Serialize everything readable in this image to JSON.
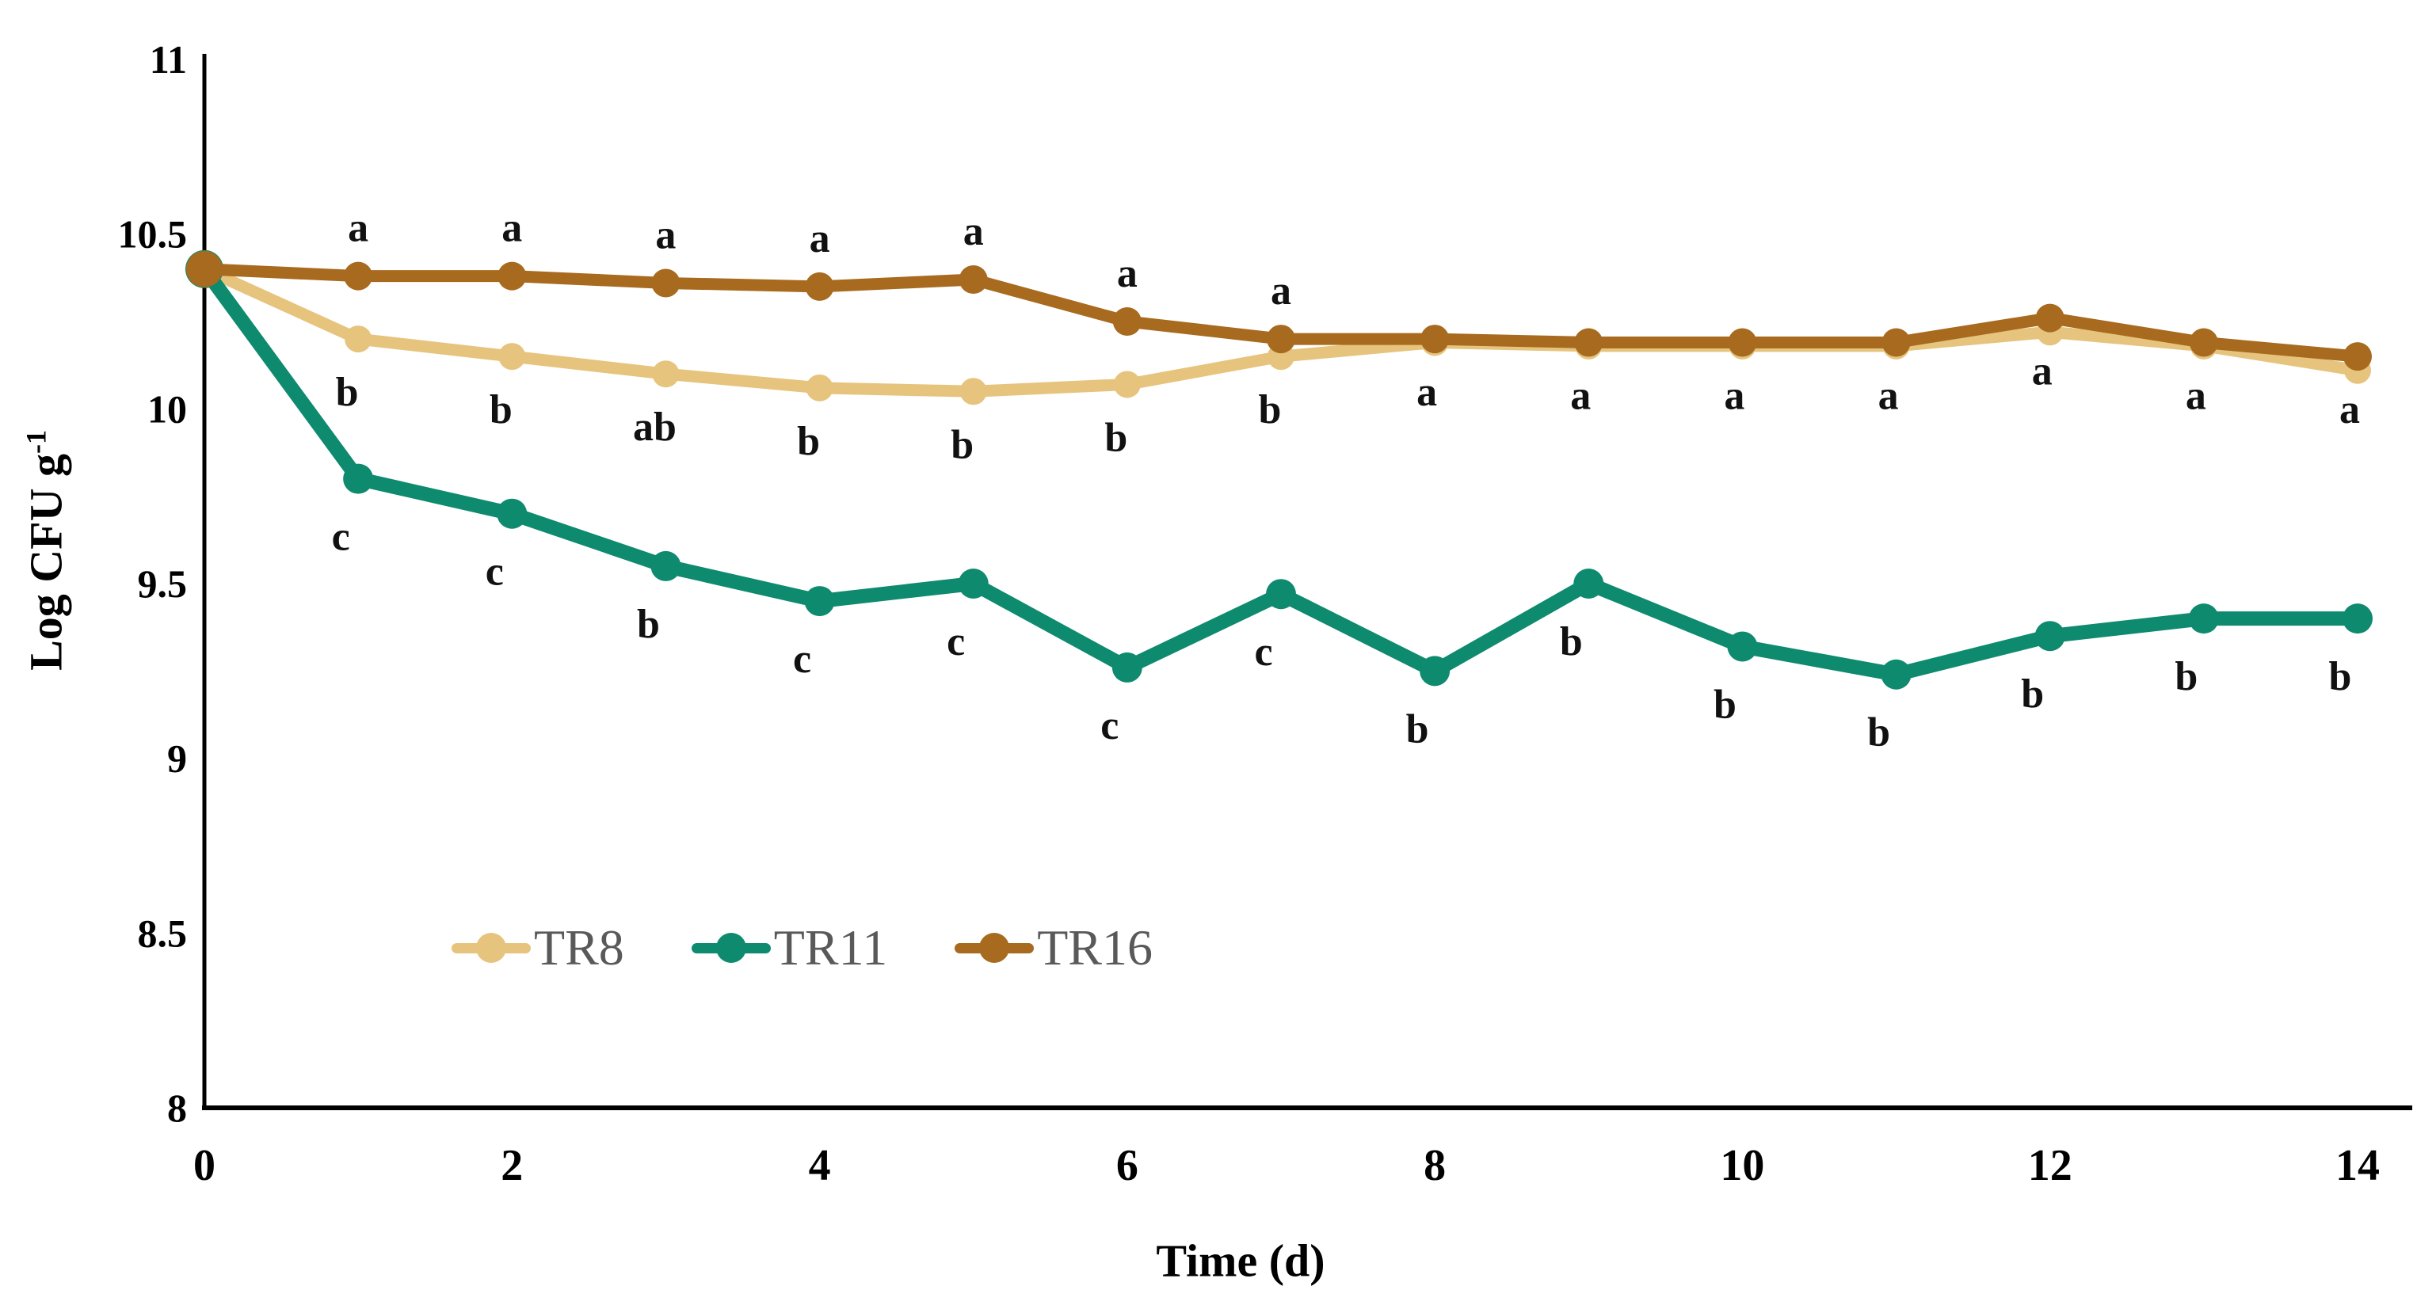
{
  "chart_data": {
    "type": "line",
    "title": "",
    "xlabel": "Time (d)",
    "ylabel_text": "Log CFU g",
    "ylabel_sup": "-1",
    "x": [
      0,
      1,
      2,
      3,
      4,
      5,
      6,
      7,
      8,
      9,
      10,
      11,
      12,
      13,
      14
    ],
    "x_ticks": [
      "0",
      "2",
      "4",
      "6",
      "8",
      "10",
      "12",
      "14"
    ],
    "x_tick_values": [
      0,
      2,
      4,
      6,
      8,
      10,
      12,
      14
    ],
    "y_ticks": [
      "8",
      "8.5",
      "9",
      "9.5",
      "10",
      "10.5",
      "11"
    ],
    "y_tick_values": [
      8,
      8.5,
      9,
      9.5,
      10,
      10.5,
      11
    ],
    "xlim": [
      0,
      14
    ],
    "ylim": [
      8,
      11
    ],
    "grid": false,
    "legend_position": "bottom-left-inside",
    "axis_color": "#000000",
    "letter_color": "#111111",
    "legend_text_color": "#595959",
    "series": [
      {
        "name": "TR8",
        "color": "#E6C47D",
        "values": [
          10.4,
          10.2,
          10.15,
          10.1,
          10.06,
          10.05,
          10.07,
          10.15,
          10.19,
          10.18,
          10.18,
          10.18,
          10.22,
          10.18,
          10.11
        ],
        "letters": [
          "",
          "b",
          "b",
          "ab",
          "b",
          "b",
          "b",
          "b",
          "",
          "",
          "",
          "",
          "",
          "",
          ""
        ],
        "letter_side": [
          "",
          "below",
          "below",
          "below",
          "below",
          "below",
          "below",
          "below",
          "",
          "",
          "",
          "",
          "",
          "",
          ""
        ]
      },
      {
        "name": "TR11",
        "color": "#0E8A6E",
        "values": [
          10.4,
          9.8,
          9.7,
          9.55,
          9.45,
          9.5,
          9.26,
          9.47,
          9.25,
          9.5,
          9.32,
          9.24,
          9.35,
          9.4,
          9.4
        ],
        "letters": [
          "",
          "c",
          "c",
          "b",
          "c",
          "c",
          "c",
          "c",
          "b",
          "b",
          "b",
          "b",
          "b",
          "b",
          "b"
        ],
        "letter_side": [
          "",
          "below",
          "below",
          "below",
          "below",
          "below",
          "below",
          "below",
          "below",
          "below",
          "below",
          "below",
          "below",
          "below",
          "below"
        ]
      },
      {
        "name": "TR16",
        "color": "#A76A1E",
        "values": [
          10.4,
          10.38,
          10.38,
          10.36,
          10.35,
          10.37,
          10.25,
          10.2,
          10.2,
          10.19,
          10.19,
          10.19,
          10.26,
          10.19,
          10.15
        ],
        "letters": [
          "",
          "a",
          "a",
          "a",
          "a",
          "a",
          "a",
          "a",
          "a",
          "a",
          "a",
          "a",
          "a",
          "a",
          "a"
        ],
        "letter_side": [
          "",
          "above",
          "above",
          "above",
          "above",
          "above",
          "above",
          "above",
          "below",
          "below",
          "below",
          "below",
          "below",
          "below",
          "below"
        ]
      }
    ]
  }
}
